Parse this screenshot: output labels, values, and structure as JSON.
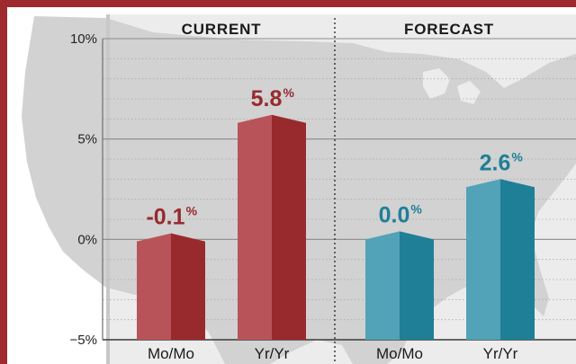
{
  "colors": {
    "frame": "#9e2a2f",
    "current_light": "#b85459",
    "current_dark": "#982a2e",
    "forecast_light": "#52a3b7",
    "forecast_dark": "#1f7f97",
    "map": "#d5d5d5",
    "panel": "#c8c8c8"
  },
  "chart_data": {
    "type": "bar",
    "ylim": [
      -5,
      10
    ],
    "ticks": [
      10,
      5,
      0,
      -5
    ],
    "tick_labels": [
      "10%",
      "5%",
      "0%",
      "−5%"
    ],
    "grid": true,
    "groups": [
      {
        "title": "CURRENT",
        "color_key": "current",
        "categories": [
          "Mo/Mo",
          "Yr/Yr"
        ],
        "values": [
          -0.1,
          5.8
        ],
        "value_labels": [
          "-0.1",
          "5.8"
        ],
        "suffix": "%"
      },
      {
        "title": "FORECAST",
        "color_key": "forecast",
        "categories": [
          "Mo/Mo",
          "Yr/Yr"
        ],
        "values": [
          0.0,
          2.6
        ],
        "value_labels": [
          "0.0",
          "2.6"
        ],
        "suffix": "%"
      }
    ]
  }
}
